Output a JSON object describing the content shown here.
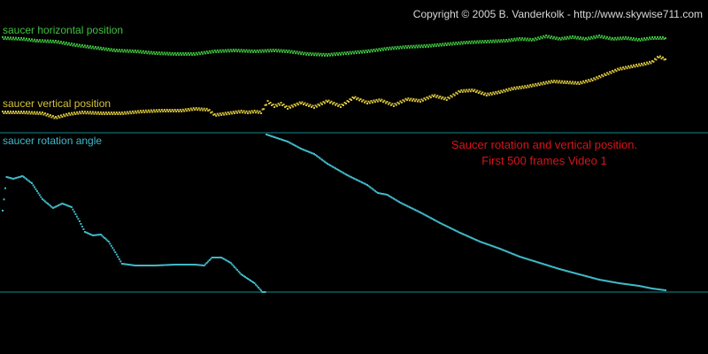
{
  "copyright": "Copyright © 2005 B. Vanderkolk - http://www.skywise711.com",
  "annotation": {
    "line1": "Saucer rotation and vertical position.",
    "line2": "First 500 frames Video 1"
  },
  "colors": {
    "background": "#000000",
    "copyright": "#d8d8d8",
    "horizontal": "#3fc23f",
    "vertical": "#d6c23a",
    "rotation": "#41b8c8",
    "separator": "#138a8c",
    "annotation": "#d9141a"
  },
  "chart_data": {
    "type": "scatter",
    "frames": 500,
    "grid": false,
    "series": [
      {
        "name": "saucer horizontal position",
        "key": "horizontal",
        "points": [
          [
            0,
            43
          ],
          [
            15,
            44
          ],
          [
            25,
            46
          ],
          [
            40,
            47
          ],
          [
            55,
            51
          ],
          [
            70,
            54
          ],
          [
            85,
            57
          ],
          [
            100,
            58
          ],
          [
            115,
            60
          ],
          [
            130,
            61
          ],
          [
            145,
            61
          ],
          [
            160,
            58
          ],
          [
            175,
            57
          ],
          [
            190,
            58
          ],
          [
            205,
            57
          ],
          [
            215,
            58
          ],
          [
            230,
            61
          ],
          [
            245,
            62
          ],
          [
            260,
            60
          ],
          [
            275,
            58
          ],
          [
            290,
            55
          ],
          [
            305,
            53
          ],
          [
            320,
            52
          ],
          [
            335,
            50
          ],
          [
            350,
            48
          ],
          [
            365,
            47
          ],
          [
            380,
            46
          ],
          [
            390,
            44
          ],
          [
            400,
            45
          ],
          [
            410,
            41
          ],
          [
            420,
            44
          ],
          [
            430,
            42
          ],
          [
            440,
            44
          ],
          [
            450,
            41
          ],
          [
            460,
            44
          ],
          [
            470,
            43
          ],
          [
            480,
            45
          ],
          [
            490,
            43
          ],
          [
            500,
            43
          ]
        ]
      },
      {
        "name": "saucer vertical position",
        "key": "vertical",
        "points": [
          [
            0,
            127
          ],
          [
            15,
            127
          ],
          [
            30,
            128
          ],
          [
            40,
            133
          ],
          [
            50,
            129
          ],
          [
            60,
            127
          ],
          [
            75,
            128
          ],
          [
            90,
            128
          ],
          [
            105,
            126
          ],
          [
            120,
            125
          ],
          [
            135,
            125
          ],
          [
            145,
            123
          ],
          [
            155,
            124
          ],
          [
            160,
            130
          ],
          [
            170,
            128
          ],
          [
            180,
            126
          ],
          [
            185,
            127
          ],
          [
            190,
            126
          ],
          [
            195,
            127
          ],
          [
            200,
            115
          ],
          [
            205,
            120
          ],
          [
            210,
            117
          ],
          [
            215,
            122
          ],
          [
            225,
            116
          ],
          [
            235,
            121
          ],
          [
            245,
            114
          ],
          [
            255,
            120
          ],
          [
            265,
            110
          ],
          [
            275,
            116
          ],
          [
            285,
            113
          ],
          [
            295,
            119
          ],
          [
            305,
            112
          ],
          [
            315,
            114
          ],
          [
            325,
            108
          ],
          [
            335,
            112
          ],
          [
            345,
            103
          ],
          [
            355,
            102
          ],
          [
            365,
            107
          ],
          [
            375,
            104
          ],
          [
            385,
            100
          ],
          [
            395,
            98
          ],
          [
            405,
            95
          ],
          [
            415,
            92
          ],
          [
            425,
            93
          ],
          [
            435,
            94
          ],
          [
            445,
            90
          ],
          [
            455,
            84
          ],
          [
            465,
            78
          ],
          [
            475,
            75
          ],
          [
            485,
            72
          ],
          [
            490,
            70
          ],
          [
            495,
            64
          ],
          [
            500,
            67
          ]
        ]
      },
      {
        "name": "saucer rotation angle",
        "key": "rotation",
        "points": [
          [
            0,
            238
          ],
          [
            3,
            200
          ],
          [
            8,
            202
          ],
          [
            15,
            199
          ],
          [
            22,
            207
          ],
          [
            30,
            225
          ],
          [
            38,
            235
          ],
          [
            45,
            230
          ],
          [
            52,
            234
          ],
          [
            58,
            250
          ],
          [
            62,
            262
          ],
          [
            68,
            266
          ],
          [
            74,
            265
          ],
          [
            80,
            273
          ],
          [
            85,
            285
          ],
          [
            90,
            298
          ],
          [
            100,
            300
          ],
          [
            115,
            300
          ],
          [
            130,
            299
          ],
          [
            145,
            299
          ],
          [
            152,
            300
          ],
          [
            158,
            291
          ],
          [
            165,
            291
          ],
          [
            172,
            297
          ],
          [
            180,
            310
          ],
          [
            190,
            320
          ],
          [
            196,
            330
          ],
          [
            199,
            152
          ],
          [
            205,
            155
          ],
          [
            215,
            160
          ],
          [
            225,
            168
          ],
          [
            235,
            174
          ],
          [
            245,
            185
          ],
          [
            260,
            198
          ],
          [
            275,
            209
          ],
          [
            283,
            218
          ],
          [
            290,
            220
          ],
          [
            300,
            229
          ],
          [
            315,
            240
          ],
          [
            330,
            252
          ],
          [
            345,
            263
          ],
          [
            360,
            273
          ],
          [
            375,
            281
          ],
          [
            390,
            290
          ],
          [
            405,
            297
          ],
          [
            420,
            304
          ],
          [
            435,
            310
          ],
          [
            450,
            316
          ],
          [
            465,
            320
          ],
          [
            480,
            323
          ],
          [
            490,
            326
          ],
          [
            500,
            328
          ]
        ]
      }
    ]
  }
}
